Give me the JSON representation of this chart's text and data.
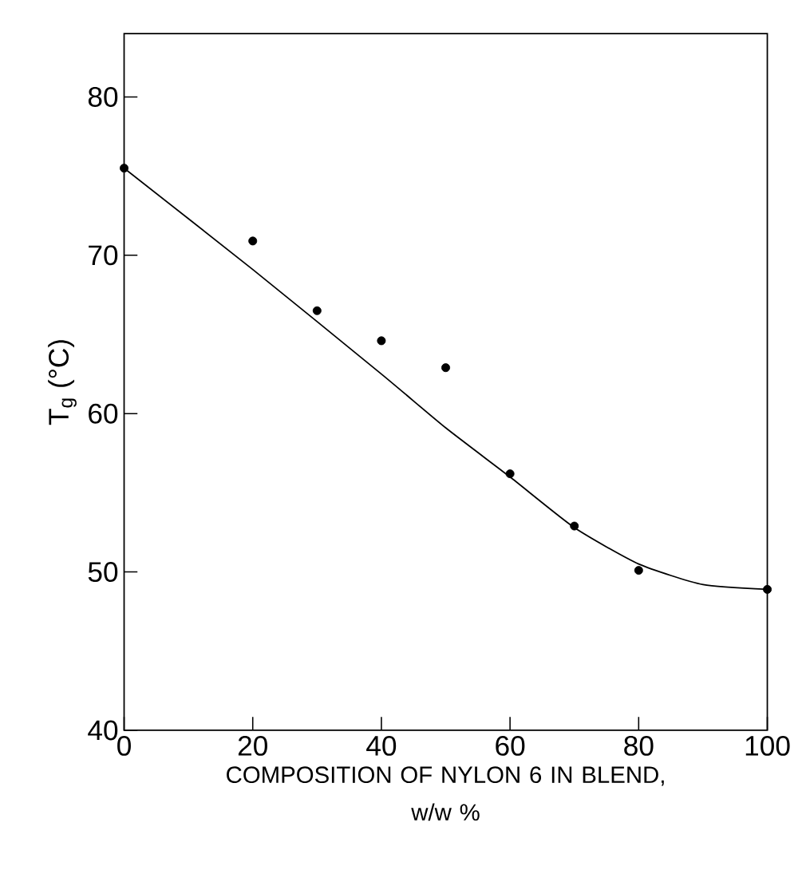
{
  "chart_data": {
    "type": "scatter",
    "xlabel": "COMPOSITION OF NYLON 6 IN BLEND,\nw/w %",
    "ylabel": "T$_{g}$ (°C)",
    "xlim": [
      0,
      100
    ],
    "ylim": [
      40,
      84
    ],
    "xticks": [
      0,
      20,
      40,
      60,
      80,
      100
    ],
    "yticks": [
      40,
      50,
      60,
      70,
      80
    ],
    "grid": false,
    "series": [
      {
        "color": "#000000",
        "marker": "circle",
        "x": [
          0,
          20,
          30,
          40,
          50,
          60,
          70,
          80,
          100
        ],
        "values": [
          75.5,
          70.9,
          66.5,
          64.6,
          62.9,
          56.2,
          52.9,
          50.1,
          48.9
        ]
      },
      {
        "type": "line",
        "color": "#000000",
        "marker": "none",
        "line_style": "solid",
        "x": [
          0,
          20,
          40,
          50,
          60,
          70,
          80,
          90,
          100
        ],
        "values": [
          75.5,
          69.1,
          62.5,
          59.1,
          56.0,
          52.8,
          50.5,
          49.2,
          48.9
        ]
      }
    ]
  }
}
